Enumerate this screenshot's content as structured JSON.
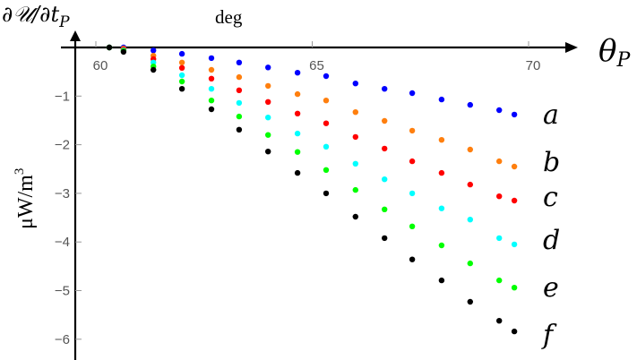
{
  "chart_data": {
    "type": "scatter",
    "title": "",
    "xlabel": "θ_P",
    "x_unit_label": "deg",
    "ylabel": "∂𝒰/∂t_P",
    "y_unit_label": "μW/m³",
    "xlim": [
      59.5,
      71.1
    ],
    "ylim": [
      -6.5,
      0.8
    ],
    "x_ticks": [
      60,
      65,
      70
    ],
    "y_ticks": [
      -1,
      -2,
      -3,
      -4,
      -5,
      -6
    ],
    "grid": false,
    "legend": "inline labels at right end of each series",
    "x": [
      60.31,
      60.64,
      61.33,
      61.99,
      62.67,
      63.31,
      63.98,
      64.66,
      65.32,
      66.0,
      66.67,
      67.31,
      67.99,
      68.65,
      69.32,
      69.67
    ],
    "series": [
      {
        "name": "a",
        "color": "#0000ff",
        "values": [
          0.0,
          0.0,
          -0.06,
          -0.13,
          -0.22,
          -0.31,
          -0.41,
          -0.52,
          -0.59,
          -0.74,
          -0.85,
          -0.94,
          -1.07,
          -1.18,
          -1.29,
          -1.38
        ]
      },
      {
        "name": "b",
        "color": "#ff7f0e",
        "values": [
          0.0,
          -0.02,
          -0.17,
          -0.31,
          -0.46,
          -0.61,
          -0.79,
          -0.96,
          -1.09,
          -1.33,
          -1.51,
          -1.71,
          -1.9,
          -2.1,
          -2.34,
          -2.45
        ]
      },
      {
        "name": "c",
        "color": "#ff0000",
        "values": [
          0.0,
          -0.04,
          -0.24,
          -0.42,
          -0.64,
          -0.88,
          -1.12,
          -1.36,
          -1.56,
          -1.84,
          -2.08,
          -2.34,
          -2.58,
          -2.82,
          -3.06,
          -3.15
        ]
      },
      {
        "name": "d",
        "color": "#00ffff",
        "values": [
          0.0,
          -0.06,
          -0.31,
          -0.57,
          -0.85,
          -1.14,
          -1.44,
          -1.77,
          -2.04,
          -2.39,
          -2.71,
          -3.0,
          -3.31,
          -3.54,
          -3.92,
          -4.05
        ]
      },
      {
        "name": "e",
        "color": "#00ff00",
        "values": [
          0.0,
          -0.07,
          -0.39,
          -0.7,
          -1.09,
          -1.42,
          -1.8,
          -2.15,
          -2.52,
          -2.93,
          -3.33,
          -3.68,
          -4.07,
          -4.44,
          -4.79,
          -4.94
        ]
      },
      {
        "name": "f",
        "color": "#000000",
        "values": [
          0.0,
          -0.09,
          -0.46,
          -0.85,
          -1.27,
          -1.69,
          -2.14,
          -2.58,
          -3.0,
          -3.48,
          -3.92,
          -4.36,
          -4.79,
          -5.23,
          -5.62,
          -5.84
        ]
      }
    ]
  },
  "labels": {
    "y_title": "∂𝒰/∂t",
    "y_title_sub": "P",
    "x_title": "θ",
    "x_title_sub": "P",
    "x_unit": "deg",
    "y_unit": "μW/m",
    "y_unit_sup": "3"
  }
}
